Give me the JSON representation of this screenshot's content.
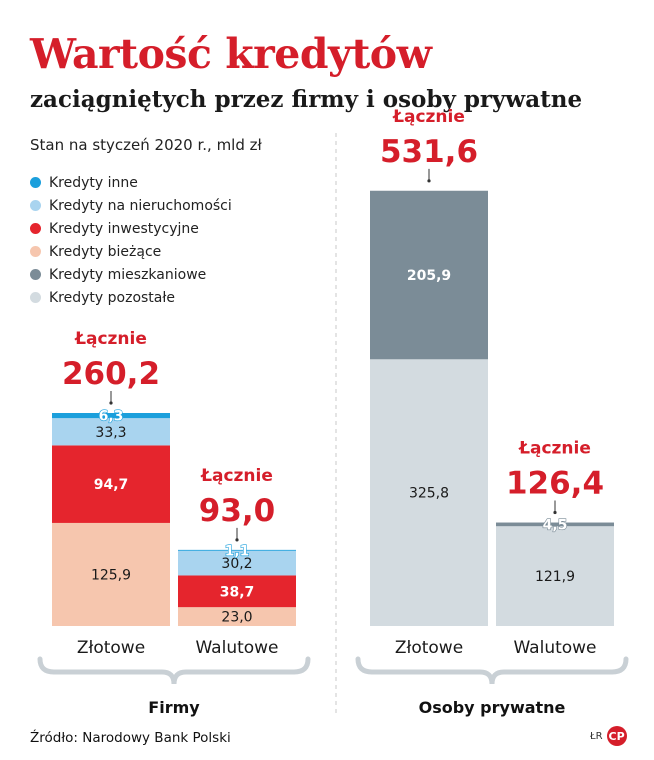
{
  "title": "Wartość kredytów",
  "subtitle": "zaciągniętych przez firmy i osoby prywatne",
  "note": "Stan na styczeń 2020 r., mld zł",
  "legend": [
    {
      "label": "Kredyty inne",
      "color": "#1b9fdc"
    },
    {
      "label": "Kredyty na nieruchomości",
      "color": "#a9d4ef"
    },
    {
      "label": "Kredyty inwestycyjne",
      "color": "#e5252d"
    },
    {
      "label": "Kredyty bieżące",
      "color": "#f6c6ae"
    },
    {
      "label": "Kredyty mieszkaniowe",
      "color": "#7b8c97"
    },
    {
      "label": "Kredyty pozostałe",
      "color": "#d3dbe0"
    }
  ],
  "source": "Źródło: Narodowy Bank Polski",
  "logo": {
    "initials": "ŁR",
    "mark": "CP"
  },
  "chart_data": {
    "type": "bar",
    "stacked": true,
    "units": "mld zł",
    "total_label": "Łącznie",
    "groups": [
      {
        "name": "Firmy",
        "categories": [
          "Złotowe",
          "Walutowe"
        ],
        "series": [
          {
            "name": "Kredyty bieżące",
            "color": "#f6c6ae",
            "values": [
              125.9,
              23.0
            ],
            "labels": [
              "125,9",
              "23,0"
            ]
          },
          {
            "name": "Kredyty inwestycyjne",
            "color": "#e5252d",
            "values": [
              94.7,
              38.7
            ],
            "labels": [
              "94,7",
              "38,7"
            ]
          },
          {
            "name": "Kredyty na nieruchomości",
            "color": "#a9d4ef",
            "values": [
              33.3,
              30.2
            ],
            "labels": [
              "33,3",
              "30,2"
            ]
          },
          {
            "name": "Kredyty inne",
            "color": "#1b9fdc",
            "values": [
              6.3,
              1.1
            ],
            "labels": [
              "6,3",
              "1,1"
            ]
          }
        ],
        "totals": [
          260.2,
          93.0
        ],
        "total_labels": [
          "260,2",
          "93,0"
        ]
      },
      {
        "name": "Osoby prywatne",
        "categories": [
          "Złotowe",
          "Walutowe"
        ],
        "series": [
          {
            "name": "Kredyty pozostałe",
            "color": "#d3dbe0",
            "values": [
              325.8,
              121.9
            ],
            "labels": [
              "325,8",
              "121,9"
            ]
          },
          {
            "name": "Kredyty mieszkaniowe",
            "color": "#7b8c97",
            "values": [
              205.9,
              4.5
            ],
            "labels": [
              "205,9",
              "4,5"
            ]
          }
        ],
        "totals": [
          531.6,
          126.4
        ],
        "total_labels": [
          "531,6",
          "126,4"
        ]
      }
    ]
  }
}
